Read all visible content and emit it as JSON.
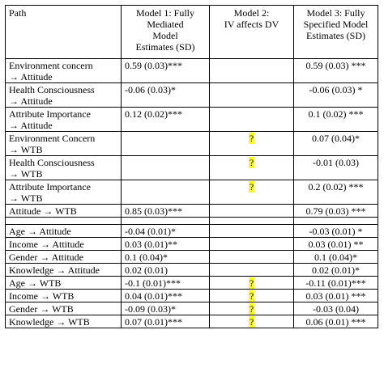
{
  "header": {
    "path": "Path",
    "model1": [
      "Model 1: Fully",
      "Mediated",
      "Model",
      "Estimates (SD)"
    ],
    "model2": [
      "Model 2:",
      "IV affects DV"
    ],
    "model3": [
      "Model 3: Fully",
      "Specified Model",
      "Estimates (SD)"
    ]
  },
  "rows": [
    {
      "path": [
        "Environment concern",
        "→ Attitude"
      ],
      "m1": "0.59 (0.03)***",
      "m2": "",
      "m3": "0.59 (0.03) ***"
    },
    {
      "path": [
        "Health Consciousness",
        "→ Attitude"
      ],
      "m1": "-0.06 (0.03)*",
      "m2": "",
      "m3": "-0.06 (0.03) *"
    },
    {
      "path": [
        "Attribute Importance",
        "→ Attitude"
      ],
      "m1": "0.12 (0.02)***",
      "m2": "",
      "m3": "0.1 (0.02) ***"
    },
    {
      "path": [
        "Environment Concern",
        "→ WTB"
      ],
      "m1": "",
      "m2": "?",
      "m3": "0.07 (0.04)*"
    },
    {
      "path": [
        "Health Consciousness",
        "→ WTB"
      ],
      "m1": "",
      "m2": "?",
      "m3": "-0.01 (0.03)"
    },
    {
      "path": [
        "Attribute Importance",
        "→ WTB"
      ],
      "m1": "",
      "m2": "?",
      "m3": "0.2 (0.02) ***"
    },
    {
      "path": [
        "Attitude → WTB"
      ],
      "m1": "0.85 (0.03)***",
      "m2": "",
      "m3": "0.79 (0.03) ***"
    }
  ],
  "rows2": [
    {
      "path": [
        "Age → Attitude"
      ],
      "m1": "-0.04 (0.01)*",
      "m2": "",
      "m3": "-0.03 (0.01) *"
    },
    {
      "path": [
        "Income → Attitude"
      ],
      "m1": "0.03 (0.01)**",
      "m2": "",
      "m3": "0.03 (0.01) **"
    },
    {
      "path": [
        "Gender → Attitude"
      ],
      "m1": "0.1 (0.04)*",
      "m2": "",
      "m3": "0.1 (0.04)*"
    },
    {
      "path": [
        "Knowledge → Attitude"
      ],
      "m1": "0.02 (0.01)",
      "m2": "",
      "m3": "0.02 (0.01)*"
    },
    {
      "path": [
        "Age → WTB"
      ],
      "m1": "-0.1 (0.01)***",
      "m2": "?",
      "m3": "-0.11 (0.01)***"
    },
    {
      "path": [
        "Income → WTB"
      ],
      "m1": "0.04 (0.01)***",
      "m2": "?",
      "m3": "0.03 (0.01) ***"
    },
    {
      "path": [
        "Gender → WTB"
      ],
      "m1": "-0.09 (0.03)*",
      "m2": "?",
      "m3": "-0.03 (0.04)"
    },
    {
      "path": [
        "Knowledge → WTB"
      ],
      "m1": "0.07 (0.01)***",
      "m2": "?",
      "m3": "0.06 (0.01) ***"
    }
  ]
}
